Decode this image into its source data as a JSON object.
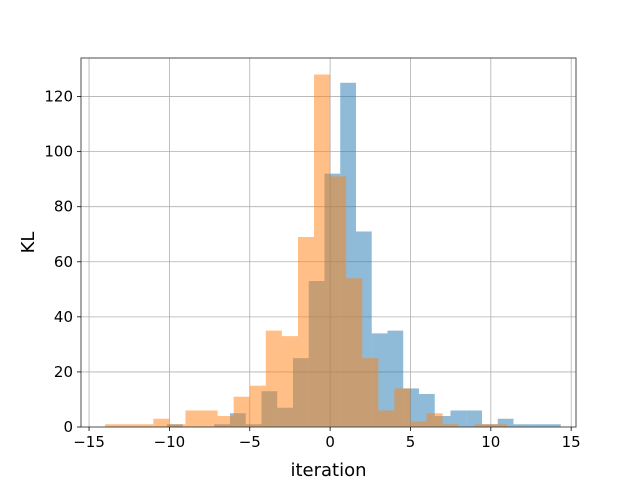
{
  "chart_data": {
    "type": "histogram",
    "xlabel": "iteration",
    "ylabel": "KL",
    "xlim": [
      -15.5,
      15.3
    ],
    "ylim": [
      0,
      134
    ],
    "xticks": [
      -15,
      -10,
      -5,
      0,
      5,
      10,
      15
    ],
    "yticks": [
      0,
      20,
      40,
      60,
      80,
      100,
      120
    ],
    "grid": true,
    "series": [
      {
        "color": "#1f77b4",
        "alpha": 0.5,
        "bin_width": 0.98,
        "bin_starts": [
          -10.15,
          -9.17,
          -8.19,
          -7.21,
          -6.23,
          -5.25,
          -4.27,
          -3.29,
          -2.31,
          -1.33,
          -0.35,
          0.63,
          1.61,
          2.59,
          3.57,
          4.55,
          5.53,
          6.51,
          7.49,
          8.47,
          9.45,
          10.43,
          11.41,
          12.39,
          13.37
        ],
        "counts": [
          1,
          0,
          0,
          1,
          5,
          1,
          13,
          7,
          25,
          53,
          92,
          125,
          71,
          34,
          35,
          14,
          12,
          4,
          6,
          6,
          1,
          3,
          1,
          1,
          1
        ]
      },
      {
        "color": "#ff7f0e",
        "alpha": 0.5,
        "bin_width": 1.0,
        "bin_starts": [
          -14.0,
          -13.0,
          -12.0,
          -11.0,
          -10.0,
          -9.0,
          -8.0,
          -7.0,
          -6.0,
          -5.0,
          -4.0,
          -3.0,
          -2.0,
          -1.0,
          0.0,
          1.0,
          2.0,
          3.0,
          4.0,
          5.0,
          6.0,
          7.0,
          8.0,
          9.0,
          10.0
        ],
        "counts": [
          1,
          1,
          1,
          3,
          1,
          6,
          6,
          4,
          11,
          15,
          35,
          33,
          69,
          128,
          91,
          54,
          25,
          6,
          14,
          2,
          5,
          1,
          0,
          1,
          1
        ]
      }
    ]
  }
}
